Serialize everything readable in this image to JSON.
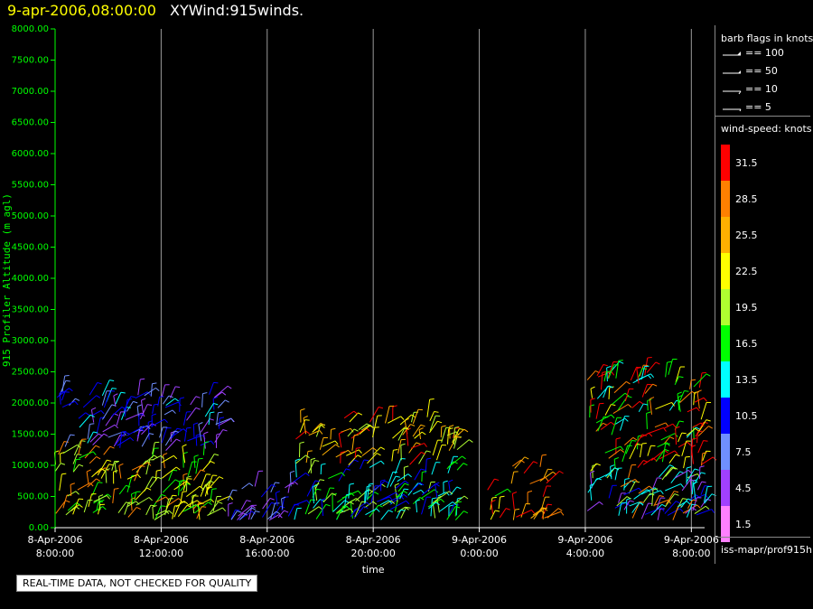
{
  "header": {
    "datetime": "9-apr-2006,08:00:00",
    "product": "XYWind:915winds."
  },
  "footer": {
    "quality_notice": "REAL-TIME DATA, NOT CHECKED FOR QUALITY"
  },
  "legend": {
    "barb_title": "barb flags in knots",
    "barb_flags": [
      {
        "label": "== 100",
        "knots": 100
      },
      {
        "label": "== 50",
        "knots": 50
      },
      {
        "label": "== 10",
        "knots": 10
      },
      {
        "label": "== 5",
        "knots": 5
      }
    ],
    "speed_title": "wind-speed: knots",
    "speed_scale": [
      {
        "label": "31.5",
        "color": "#ff0000"
      },
      {
        "label": "28.5",
        "color": "#ff8000"
      },
      {
        "label": "25.5",
        "color": "#ffb000"
      },
      {
        "label": "22.5",
        "color": "#ffff00"
      },
      {
        "label": "19.5",
        "color": "#b0ff30"
      },
      {
        "label": "16.5",
        "color": "#00ff00"
      },
      {
        "label": "13.5",
        "color": "#00ffff"
      },
      {
        "label": "10.5",
        "color": "#0000ff"
      },
      {
        "label": "7.5",
        "color": "#6f8fff"
      },
      {
        "label": "4.5",
        "color": "#a040ff"
      },
      {
        "label": "1.5",
        "color": "#ff80ff"
      }
    ],
    "source_path": "iss-mapr/prof915h"
  },
  "chart_data": {
    "type": "scatter",
    "title": "9-apr-2006,08:00:00 XYWind:915winds.",
    "xlabel": "time",
    "ylabel": "915 Profiler Altitude (m agl)",
    "axis_color": "#00ff00",
    "grid": true,
    "xlim_hours": [
      0,
      24.5
    ],
    "x_ticks": [
      {
        "hour": 0,
        "line1": "8-Apr-2006",
        "line2": "8:00:00"
      },
      {
        "hour": 4,
        "line1": "8-Apr-2006",
        "line2": "12:00:00"
      },
      {
        "hour": 8,
        "line1": "8-Apr-2006",
        "line2": "16:00:00"
      },
      {
        "hour": 12,
        "line1": "8-Apr-2006",
        "line2": "20:00:00"
      },
      {
        "hour": 16,
        "line1": "9-Apr-2006",
        "line2": "0:00:00"
      },
      {
        "hour": 20,
        "line1": "9-Apr-2006",
        "line2": "4:00:00"
      },
      {
        "hour": 24,
        "line1": "9-Apr-2006",
        "line2": "8:00:00"
      }
    ],
    "ylim": [
      0,
      8000
    ],
    "y_ticks": [
      "0.00",
      "500.00",
      "1000.00",
      "1500.00",
      "2000.00",
      "2500.00",
      "3000.00",
      "3500.00",
      "4000.00",
      "4500.00",
      "5000.00",
      "5500.00",
      "6000.00",
      "6500.00",
      "7000.00",
      "7500.00",
      "8000.00"
    ],
    "barb_clusters": [
      {
        "t_start": 0.0,
        "t_end": 6.2,
        "alt_top": 2200,
        "dominant": "yellow-green low, blue-purple 1300-2000 m"
      },
      {
        "t_start": 6.5,
        "t_end": 9.0,
        "alt_top": 700,
        "dominant": "blue-purple"
      },
      {
        "t_start": 9.0,
        "t_end": 15.2,
        "alt_top": 1800,
        "dominant": "cyan/blue low, yellow-orange upper"
      },
      {
        "t_start": 16.2,
        "t_end": 16.8,
        "alt_top": 650,
        "dominant": "green/red"
      },
      {
        "t_start": 17.2,
        "t_end": 18.6,
        "alt_top": 1000,
        "dominant": "orange/red"
      },
      {
        "t_start": 20.0,
        "t_end": 24.5,
        "alt_top": 2500,
        "dominant": "mixed, red mid, cyan low"
      }
    ]
  }
}
